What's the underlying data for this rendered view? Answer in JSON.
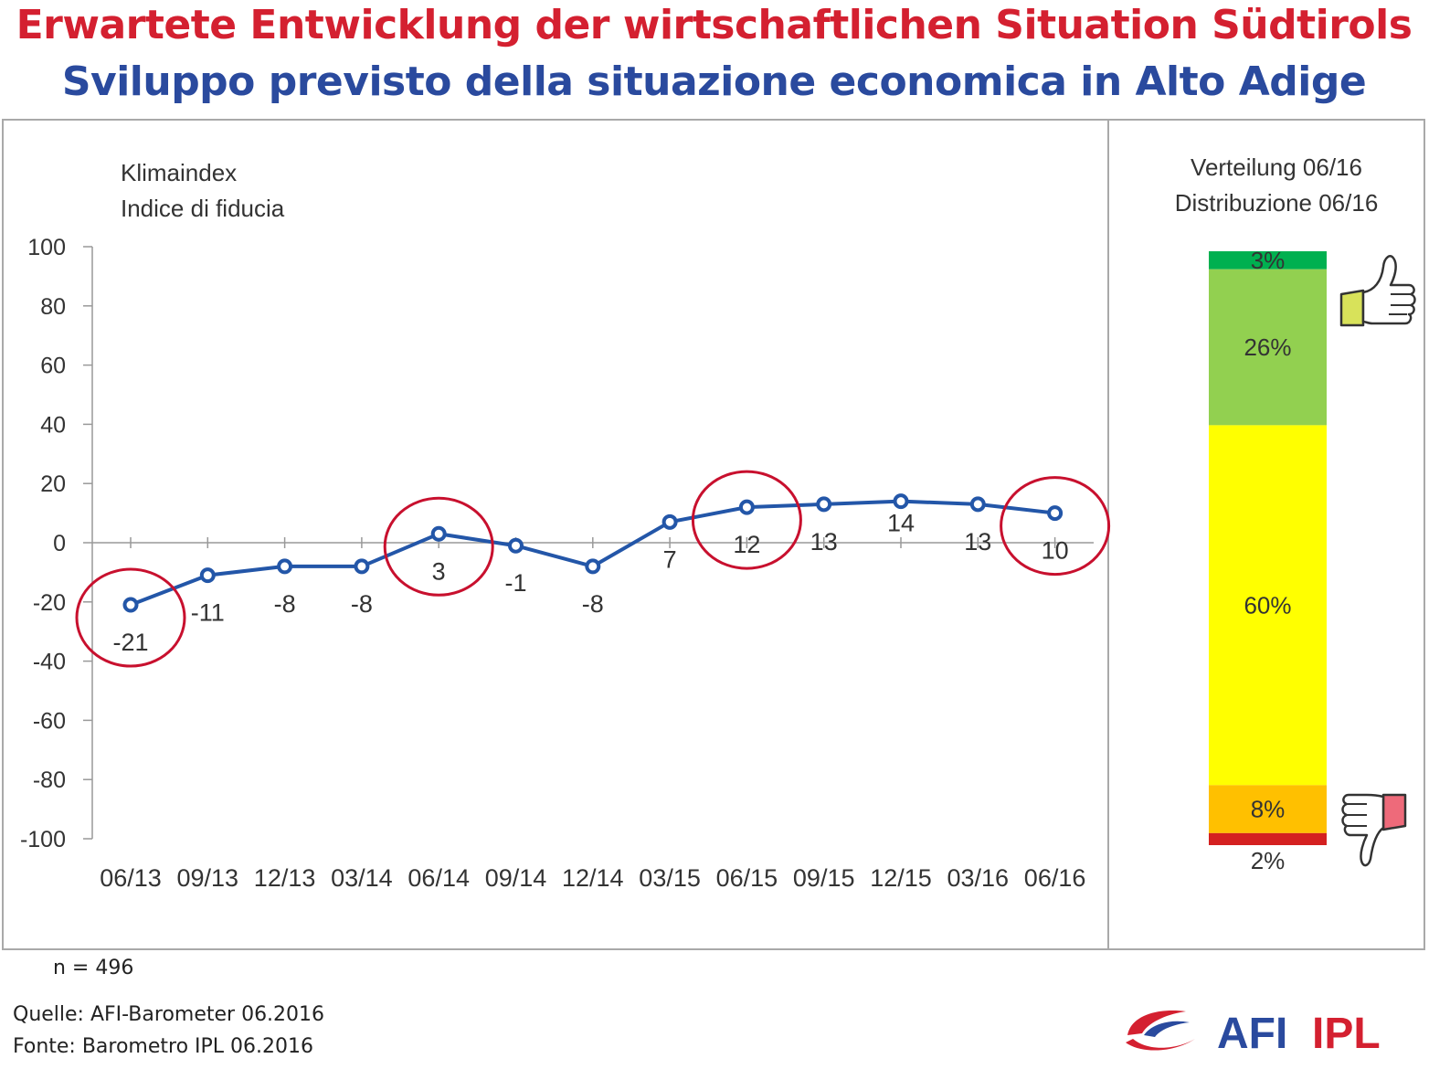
{
  "header": {
    "title_de": "Erwartete Entwicklung der wirtschaftlichen Situation Südtirols",
    "title_it": "Sviluppo previsto della situazione economica in Alto Adige"
  },
  "chart_data": [
    {
      "type": "line",
      "ylabel_line1": "Klimaindex",
      "ylabel_line2": "Indice di fiducia",
      "categories": [
        "06/13",
        "09/13",
        "12/13",
        "03/14",
        "06/14",
        "09/14",
        "12/14",
        "03/15",
        "06/15",
        "09/15",
        "12/15",
        "03/16",
        "06/16"
      ],
      "series": [
        {
          "values": [
            -21,
            -11,
            -8,
            -8,
            3,
            -1,
            -8,
            7,
            12,
            13,
            14,
            13,
            10
          ]
        }
      ],
      "data_labels": [
        "-21",
        "-11",
        "-8",
        "-8",
        "3",
        "-1",
        "-8",
        "7",
        "12",
        "13",
        "14",
        "13",
        "10"
      ],
      "y_ticks": [
        "100",
        "80",
        "60",
        "40",
        "20",
        "0",
        "-20",
        "-40",
        "-60",
        "-80",
        "-100"
      ],
      "ylim": [
        -100,
        100
      ],
      "highlighted_categories": [
        "06/13",
        "06/14",
        "06/15",
        "06/16"
      ],
      "line_color": "#2356a8",
      "highlight_color": "#c8102e",
      "grid": false
    },
    {
      "type": "bar",
      "stacked": true,
      "title_line1": "Verteilung 06/16",
      "title_line2": "Distribuzione 06/16",
      "segments": [
        {
          "label": "3%",
          "value": 3,
          "color": "#00b050"
        },
        {
          "label": "26%",
          "value": 26,
          "color": "#92d050"
        },
        {
          "label": "60%",
          "value": 60,
          "color": "#ffff00"
        },
        {
          "label": "8%",
          "value": 8,
          "color": "#ffc000"
        },
        {
          "label": "2%",
          "value": 2,
          "color": "#d42020"
        }
      ],
      "icons": [
        "thumbs-up-icon",
        "thumbs-down-icon"
      ]
    }
  ],
  "footer": {
    "sample_size": "n = 496",
    "source_de": "Quelle: AFI-Barometer 06.2016",
    "source_it": "Fonte: Barometro IPL 06.2016",
    "logo_text_afi": "AFI",
    "logo_text_ipl": "IPL",
    "logo_colors": {
      "afi": "#2a4a9e",
      "ipl": "#d42030"
    }
  }
}
